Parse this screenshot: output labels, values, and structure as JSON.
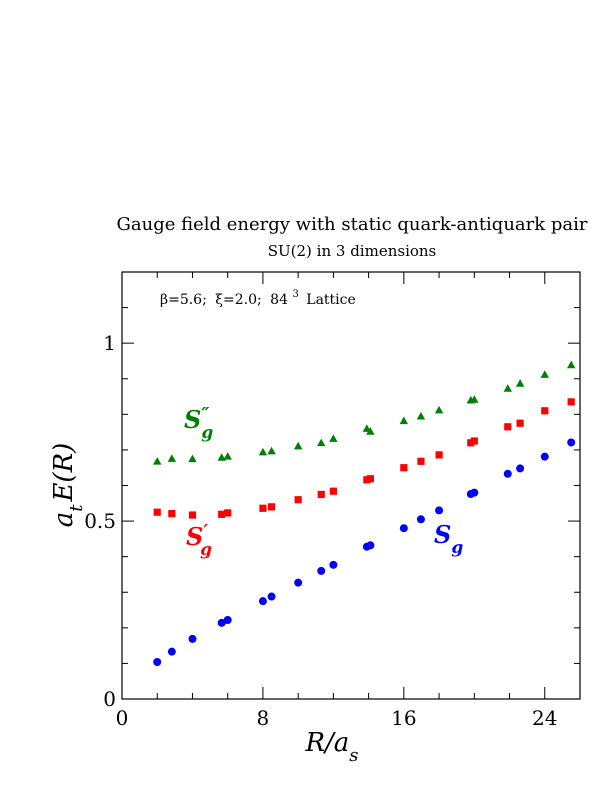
{
  "chart_data": {
    "type": "scatter",
    "title": "Gauge field energy with static quark-antiquark pair",
    "subtitle": "SU(2) in 3 dimensions",
    "annotation": {
      "beta": "β=5.6;",
      "xi": "ξ=2.0;",
      "lattice_base": "84",
      "lattice_exp": "3",
      "lattice_word": "Lattice"
    },
    "xlabel": {
      "main": "R/a",
      "sub": "s"
    },
    "ylabel": {
      "main": "a",
      "sub": "t",
      "rest": "E(R)"
    },
    "xlim": [
      0,
      26
    ],
    "ylim": [
      0,
      1.2
    ],
    "x_ticks": [
      0,
      8,
      16,
      24
    ],
    "x_tick_labels": [
      "0",
      "8",
      "16",
      "24"
    ],
    "y_ticks": [
      0,
      0.5,
      1
    ],
    "y_tick_labels": [
      "0",
      "0.5",
      "1"
    ],
    "grid": false,
    "series": [
      {
        "label_main": "S",
        "label_sub": "g",
        "label_prime": "",
        "color": "#0000ff",
        "marker": "circle",
        "x": [
          2,
          2.83,
          4,
          5.66,
          6,
          8,
          8.49,
          10,
          11.31,
          12,
          13.9,
          14.1,
          16,
          16.97,
          18,
          19.8,
          20,
          21.9,
          22.6,
          24,
          25.5
        ],
        "y": [
          0.104,
          0.133,
          0.169,
          0.214,
          0.222,
          0.275,
          0.288,
          0.327,
          0.36,
          0.377,
          0.428,
          0.432,
          0.48,
          0.505,
          0.53,
          0.576,
          0.58,
          0.633,
          0.648,
          0.681,
          0.721
        ]
      },
      {
        "label_main": "S",
        "label_sub": "g",
        "label_prime": "′",
        "color": "#ff0000",
        "marker": "square",
        "x": [
          2,
          2.83,
          4,
          5.66,
          6,
          8,
          8.49,
          10,
          11.31,
          12,
          13.9,
          14.1,
          16,
          16.97,
          18,
          19.8,
          20,
          21.9,
          22.6,
          24,
          25.5
        ],
        "y": [
          0.525,
          0.521,
          0.517,
          0.519,
          0.523,
          0.536,
          0.54,
          0.56,
          0.575,
          0.584,
          0.616,
          0.619,
          0.65,
          0.668,
          0.686,
          0.72,
          0.725,
          0.765,
          0.775,
          0.81,
          0.835
        ]
      },
      {
        "label_main": "S",
        "label_sub": "g",
        "label_prime": "″",
        "color": "#008000",
        "marker": "triangle",
        "x": [
          2,
          2.83,
          4,
          5.66,
          6,
          8,
          8.49,
          10,
          11.31,
          12,
          13.9,
          14.1,
          16,
          16.97,
          18,
          19.8,
          20,
          21.9,
          22.6,
          24,
          25.5
        ],
        "y": [
          0.668,
          0.676,
          0.675,
          0.679,
          0.682,
          0.694,
          0.697,
          0.711,
          0.72,
          0.732,
          0.76,
          0.752,
          0.782,
          0.795,
          0.812,
          0.84,
          0.842,
          0.873,
          0.887,
          0.912,
          0.939
        ]
      }
    ]
  }
}
